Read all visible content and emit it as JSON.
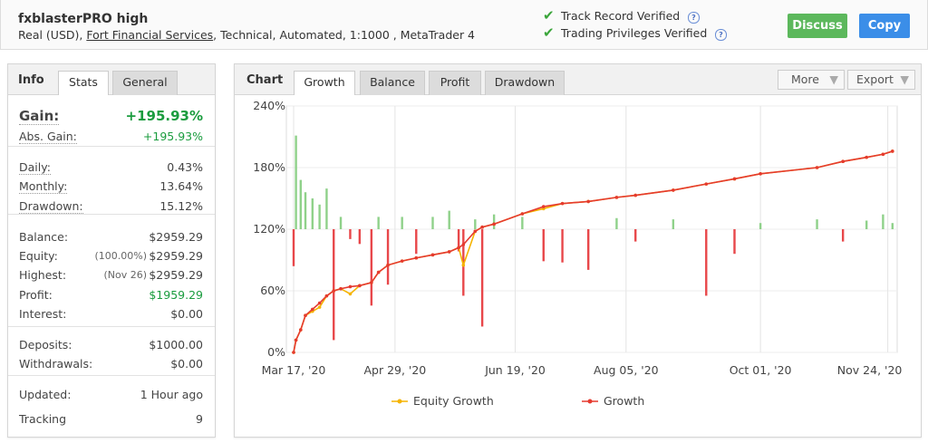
{
  "header": {
    "title": "fxblasterPRO high",
    "account": "Real (USD),",
    "broker": "Fort Financial Services",
    "details": ", Technical, Automated, 1:1000 , MetaTrader 4",
    "verified": [
      "Track Record Verified",
      "Trading Privileges Verified"
    ],
    "buttons": [
      "Discuss",
      "Copy"
    ]
  },
  "info": {
    "heading": "Info",
    "tabs": [
      "Stats",
      "General"
    ],
    "groups": [
      [
        {
          "label": "Gain:",
          "value": "+195.93%",
          "color": "#1a9c3e"
        },
        {
          "label": "Abs. Gain:",
          "value": "+195.93%",
          "color": "#1a9c3e"
        }
      ],
      [
        {
          "label": "Daily:",
          "value": "0.43%"
        },
        {
          "label": "Monthly:",
          "value": "13.64%"
        },
        {
          "label": "Drawdown:",
          "value": "15.12%"
        }
      ],
      [
        {
          "label": "Balance:",
          "value": "$2959.29"
        },
        {
          "label": "Equity:",
          "note": "(100.00%)",
          "value": "$2959.29"
        },
        {
          "label": "Highest:",
          "note": "(Nov 26)",
          "value": "$2959.29"
        },
        {
          "label": "Profit:",
          "value": "$1959.29",
          "color": "#1a9c3e"
        },
        {
          "label": "Interest:",
          "value": "$0.00"
        }
      ],
      [
        {
          "label": "Deposits:",
          "value": "$1000.00"
        },
        {
          "label": "Withdrawals:",
          "value": "$0.00"
        }
      ],
      [
        {
          "label": "Updated:",
          "value": "1 Hour ago"
        },
        {
          "label": "Tracking",
          "value": "9"
        }
      ]
    ]
  },
  "chart_panel": {
    "heading": "Chart",
    "tabs": [
      "Growth",
      "Balance",
      "Profit",
      "Drawdown"
    ],
    "menus": [
      "More",
      "Export"
    ]
  },
  "chart_data": {
    "type": "line",
    "x": [
      "2020-03-17",
      "2020-03-18",
      "2020-03-20",
      "2020-03-22",
      "2020-03-25",
      "2020-03-28",
      "2020-03-31",
      "2020-04-03",
      "2020-04-06",
      "2020-04-10",
      "2020-04-14",
      "2020-04-19",
      "2020-04-22",
      "2020-04-26",
      "2020-05-02",
      "2020-05-08",
      "2020-05-15",
      "2020-05-22",
      "2020-05-26",
      "2020-05-28",
      "2020-06-02",
      "2020-06-05",
      "2020-06-10",
      "2020-06-22",
      "2020-07-01",
      "2020-07-09",
      "2020-07-20",
      "2020-08-01",
      "2020-08-09",
      "2020-08-25",
      "2020-09-08",
      "2020-09-20",
      "2020-10-01",
      "2020-10-25",
      "2020-11-05",
      "2020-11-15",
      "2020-11-22",
      "2020-11-26"
    ],
    "series": [
      {
        "name": "Equity Growth",
        "color": "#f5b301",
        "values": [
          0,
          12,
          22,
          36,
          40,
          44,
          55,
          60,
          62,
          57,
          65,
          68,
          78,
          85,
          89,
          92,
          95,
          98,
          102,
          85,
          118,
          122,
          125,
          135,
          140,
          145,
          147,
          151,
          153,
          158,
          164,
          169,
          174,
          180,
          186,
          190,
          193,
          195.93
        ]
      },
      {
        "name": "Growth",
        "color": "#e53a2f",
        "values": [
          0,
          12,
          22,
          36,
          42,
          48,
          55,
          60,
          62,
          64,
          65,
          68,
          78,
          85,
          89,
          92,
          95,
          98,
          102,
          105,
          118,
          122,
          125,
          135,
          142,
          145,
          147,
          151,
          153,
          158,
          164,
          169,
          174,
          180,
          186,
          190,
          193,
          195.93
        ]
      },
      {
        "type": "bar",
        "axis": "y2",
        "color": "#8fd18a",
        "negative_color": "#e8474a",
        "values": [
          -3,
          7.6,
          4,
          3,
          2.5,
          2,
          3.3,
          -9,
          1,
          -0.8,
          -1.2,
          -6.2,
          1,
          -4.5,
          1,
          -2,
          1,
          1.5,
          -1.8,
          -5.4,
          0.8,
          -7.9,
          1.2,
          1,
          -2.6,
          -2.7,
          -3.3,
          0.9,
          -1,
          0.8,
          -5.4,
          -2,
          0.5,
          0.8,
          -1,
          0.7,
          1.2,
          0.5
        ]
      }
    ],
    "xlim": [
      "2020-03-17",
      "2020-11-28"
    ],
    "xticks": [
      {
        "value": "2020-03-17",
        "label": "Mar 17, '20"
      },
      {
        "value": "2020-04-29",
        "label": "Apr 29, '20"
      },
      {
        "value": "2020-06-19",
        "label": "Jun 19, '20"
      },
      {
        "value": "2020-08-05",
        "label": "Aug 05, '20"
      },
      {
        "value": "2020-10-01",
        "label": "Oct 01, '20"
      },
      {
        "value": "2020-11-24",
        "label": "Nov 24, '20"
      }
    ],
    "ylim": [
      0,
      240
    ],
    "yticks": [
      {
        "value": 0,
        "label": "0%"
      },
      {
        "value": 60,
        "label": "60%"
      },
      {
        "value": 120,
        "label": "120%"
      },
      {
        "value": 180,
        "label": "180%"
      },
      {
        "value": 240,
        "label": "240%"
      }
    ],
    "y2lim": [
      -10,
      10
    ],
    "grid": true
  }
}
